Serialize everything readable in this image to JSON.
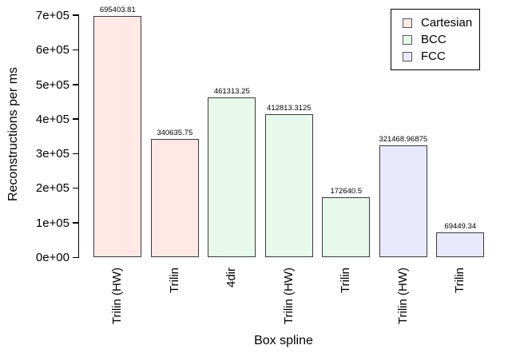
{
  "chart_data": {
    "type": "bar",
    "title": "",
    "xlabel": "Box spline",
    "ylabel": "Reconstructions per ms",
    "categories": [
      "Trilin (HW)",
      "Trilin",
      "4dir",
      "Trilin (HW)",
      "Trilin",
      "Trilin (HW)",
      "Trilin"
    ],
    "values": [
      695403.81,
      340635.75,
      461313.25,
      412813.3125,
      172640.5,
      321468.96875,
      69449.34
    ],
    "value_labels": [
      "695403.81",
      "340635.75",
      "461313.25",
      "412813.3125",
      "172640.5",
      "321468.96875",
      "69449.34"
    ],
    "bar_groups": [
      "Cartesian",
      "Cartesian",
      "BCC",
      "BCC",
      "BCC",
      "FCC",
      "FCC"
    ],
    "ylim": [
      0,
      700000
    ],
    "y_ticks": [
      "0e+00",
      "1e+05",
      "2e+05",
      "3e+05",
      "4e+05",
      "5e+05",
      "6e+05",
      "7e+05"
    ],
    "grid": "off",
    "legend": {
      "position": "top-right",
      "entries": [
        {
          "label": "Cartesian",
          "color": "#ffe8e5"
        },
        {
          "label": "BCC",
          "color": "#e7f9eb"
        },
        {
          "label": "FCC",
          "color": "#eae8fb"
        }
      ]
    },
    "bar_border_color": "#3a3a3a",
    "axis_color": "#000000"
  }
}
